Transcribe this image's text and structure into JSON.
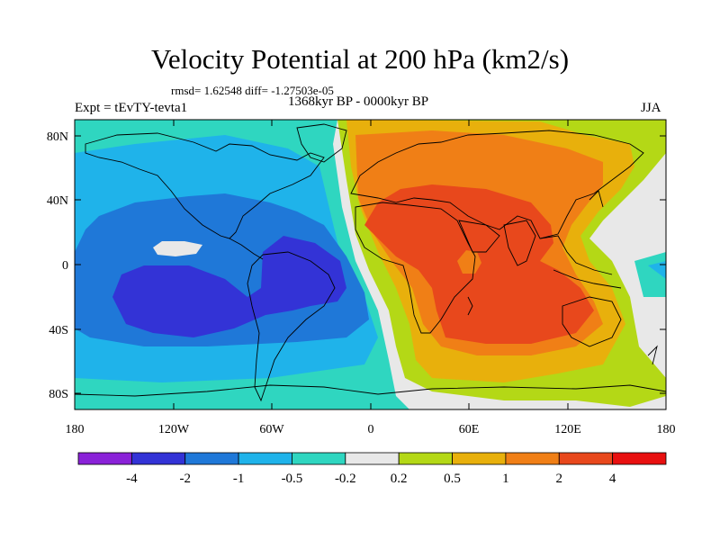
{
  "title": "Velocity Potential at 200 hPa (km2/s)",
  "stats": "rmsd= 1.62548 diff= -1.27503e-05",
  "experiment": "Expt = tEvTY-tevta1",
  "period": "1368kyr BP - 0000kyr BP",
  "season": "JJA",
  "lat_ticks": [
    "80N",
    "40N",
    "0",
    "40S",
    "80S"
  ],
  "lon_ticks": [
    "180",
    "120W",
    "60W",
    "0",
    "60E",
    "120E",
    "180"
  ],
  "colorbar": {
    "labels": [
      "-4",
      "-2",
      "-1",
      "-0.5",
      "-0.2",
      "0.2",
      "0.5",
      "1",
      "2",
      "4"
    ],
    "colors": [
      "#8a22d8",
      "#3333d6",
      "#1f78d8",
      "#1fb3ea",
      "#2fd6c0",
      "#e8e8e8",
      "#b4d816",
      "#e8b00c",
      "#f07f16",
      "#e8481c",
      "#e81010"
    ]
  },
  "field_levels": {
    "neg4": "#8a22d8",
    "neg2": "#3333d6",
    "neg1": "#1f78d8",
    "neg05": "#1fb3ea",
    "neg02": "#2fd6c0",
    "zero": "#e8e8e8",
    "pos02": "#b4d816",
    "pos05": "#e8b00c",
    "pos1": "#f07f16",
    "pos2": "#e8481c",
    "pos4": "#e81010"
  }
}
